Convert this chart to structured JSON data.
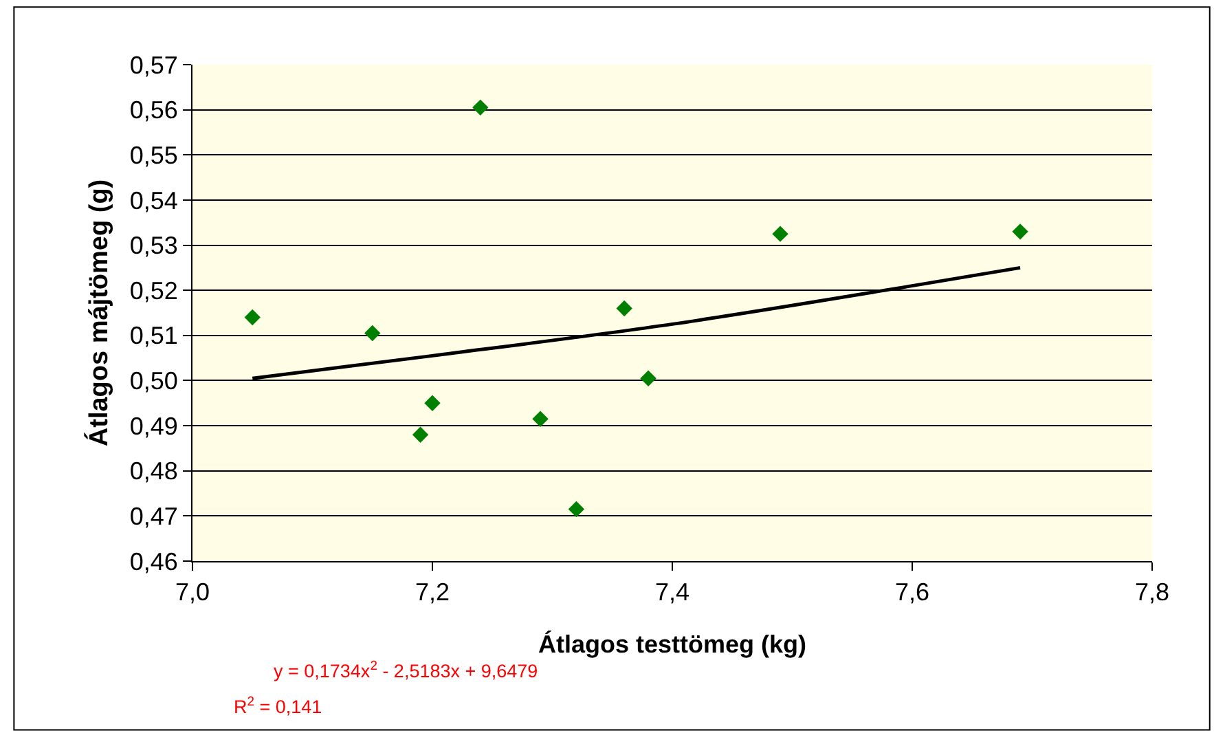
{
  "chart_data": {
    "type": "scatter",
    "xlabel": "Átlagos testtömeg (kg)",
    "ylabel": "Átlagos májtömeg (g)",
    "xlim": [
      7.0,
      7.8
    ],
    "ylim": [
      0.46,
      0.57
    ],
    "xticks": [
      {
        "value": 7.0,
        "label": "7,0"
      },
      {
        "value": 7.2,
        "label": "7,2"
      },
      {
        "value": 7.4,
        "label": "7,4"
      },
      {
        "value": 7.6,
        "label": "7,6"
      },
      {
        "value": 7.8,
        "label": "7,8"
      }
    ],
    "yticks": [
      {
        "value": 0.46,
        "label": "0,46"
      },
      {
        "value": 0.47,
        "label": "0,47"
      },
      {
        "value": 0.48,
        "label": "0,48"
      },
      {
        "value": 0.49,
        "label": "0,49"
      },
      {
        "value": 0.5,
        "label": "0,50"
      },
      {
        "value": 0.51,
        "label": "0,51"
      },
      {
        "value": 0.52,
        "label": "0,52"
      },
      {
        "value": 0.53,
        "label": "0,53"
      },
      {
        "value": 0.54,
        "label": "0,54"
      },
      {
        "value": 0.55,
        "label": "0,55"
      },
      {
        "value": 0.56,
        "label": "0,56"
      },
      {
        "value": 0.57,
        "label": "0,57"
      }
    ],
    "grid": "y",
    "series": [
      {
        "marker": "diamond",
        "color": "#008000",
        "x": [
          7.05,
          7.15,
          7.19,
          7.2,
          7.24,
          7.29,
          7.32,
          7.36,
          7.38,
          7.49,
          7.69
        ],
        "values": [
          0.514,
          0.5105,
          0.488,
          0.495,
          0.5605,
          0.4915,
          0.4715,
          0.516,
          0.5005,
          0.5325,
          0.533
        ]
      },
      {
        "type": "line",
        "color": "#000000",
        "x": [
          7.05,
          7.2,
          7.4,
          7.6,
          7.69
        ],
        "values": [
          0.5005,
          0.5055,
          0.5125,
          0.521,
          0.525
        ]
      }
    ],
    "annotations": [
      "y = 0,1734x$^{2}$ - 2,5183x + 9,6479",
      "R$^{2}$ = 0,141"
    ]
  }
}
